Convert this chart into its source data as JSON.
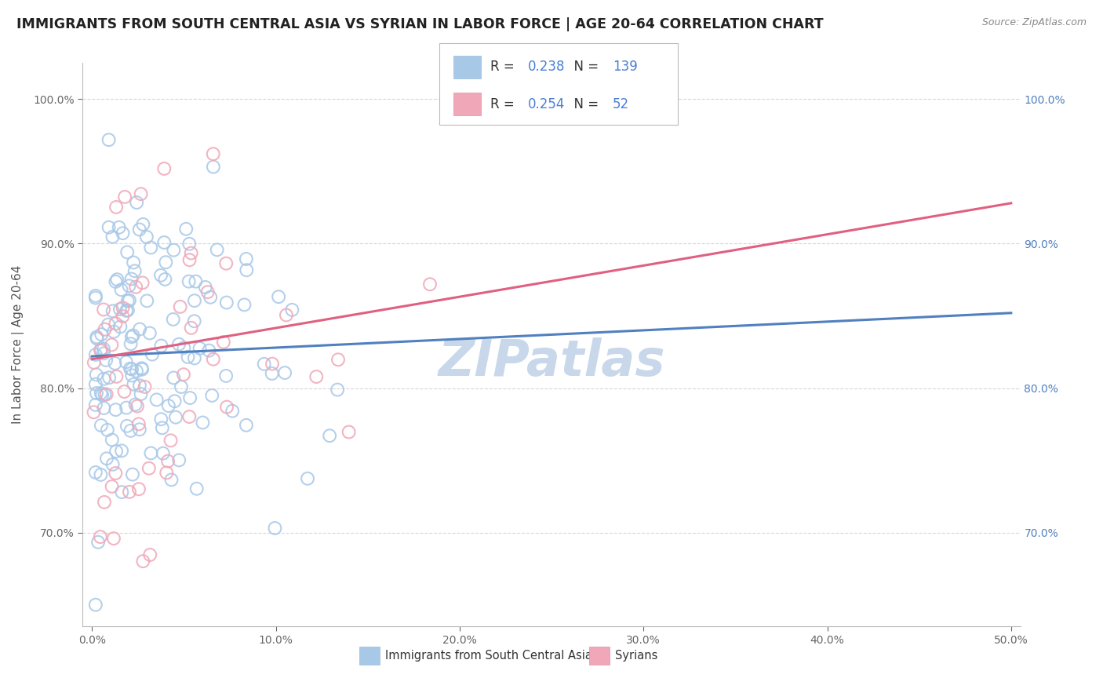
{
  "title": "IMMIGRANTS FROM SOUTH CENTRAL ASIA VS SYRIAN IN LABOR FORCE | AGE 20-64 CORRELATION CHART",
  "source": "Source: ZipAtlas.com",
  "ylabel": "In Labor Force | Age 20-64",
  "xlim": [
    -0.005,
    0.505
  ],
  "ylim": [
    0.635,
    1.025
  ],
  "xticks": [
    0.0,
    0.1,
    0.2,
    0.3,
    0.4,
    0.5
  ],
  "xticklabels": [
    "0.0%",
    "10.0%",
    "20.0%",
    "30.0%",
    "40.0%",
    "50.0%"
  ],
  "yticks": [
    0.7,
    0.8,
    0.9,
    1.0
  ],
  "yticklabels": [
    "70.0%",
    "80.0%",
    "90.0%",
    "100.0%"
  ],
  "blue_R": 0.238,
  "blue_N": 139,
  "pink_R": 0.254,
  "pink_N": 52,
  "blue_color": "#a8c8e8",
  "pink_color": "#f0a8b8",
  "blue_line_color": "#5080c0",
  "pink_line_color": "#e06080",
  "legend_blue_label": "Immigrants from South Central Asia",
  "legend_pink_label": "Syrians",
  "watermark": "ZIPatlas",
  "watermark_color": "#c8d8ea",
  "title_fontsize": 12.5,
  "axis_label_fontsize": 11,
  "tick_fontsize": 10,
  "blue_trend_x": [
    0.0,
    0.5
  ],
  "blue_trend_y": [
    0.822,
    0.852
  ],
  "pink_trend_x": [
    0.0,
    0.5
  ],
  "pink_trend_y": [
    0.82,
    0.928
  ],
  "grid_color": "#cccccc",
  "background_color": "#ffffff",
  "fig_background": "#ffffff"
}
